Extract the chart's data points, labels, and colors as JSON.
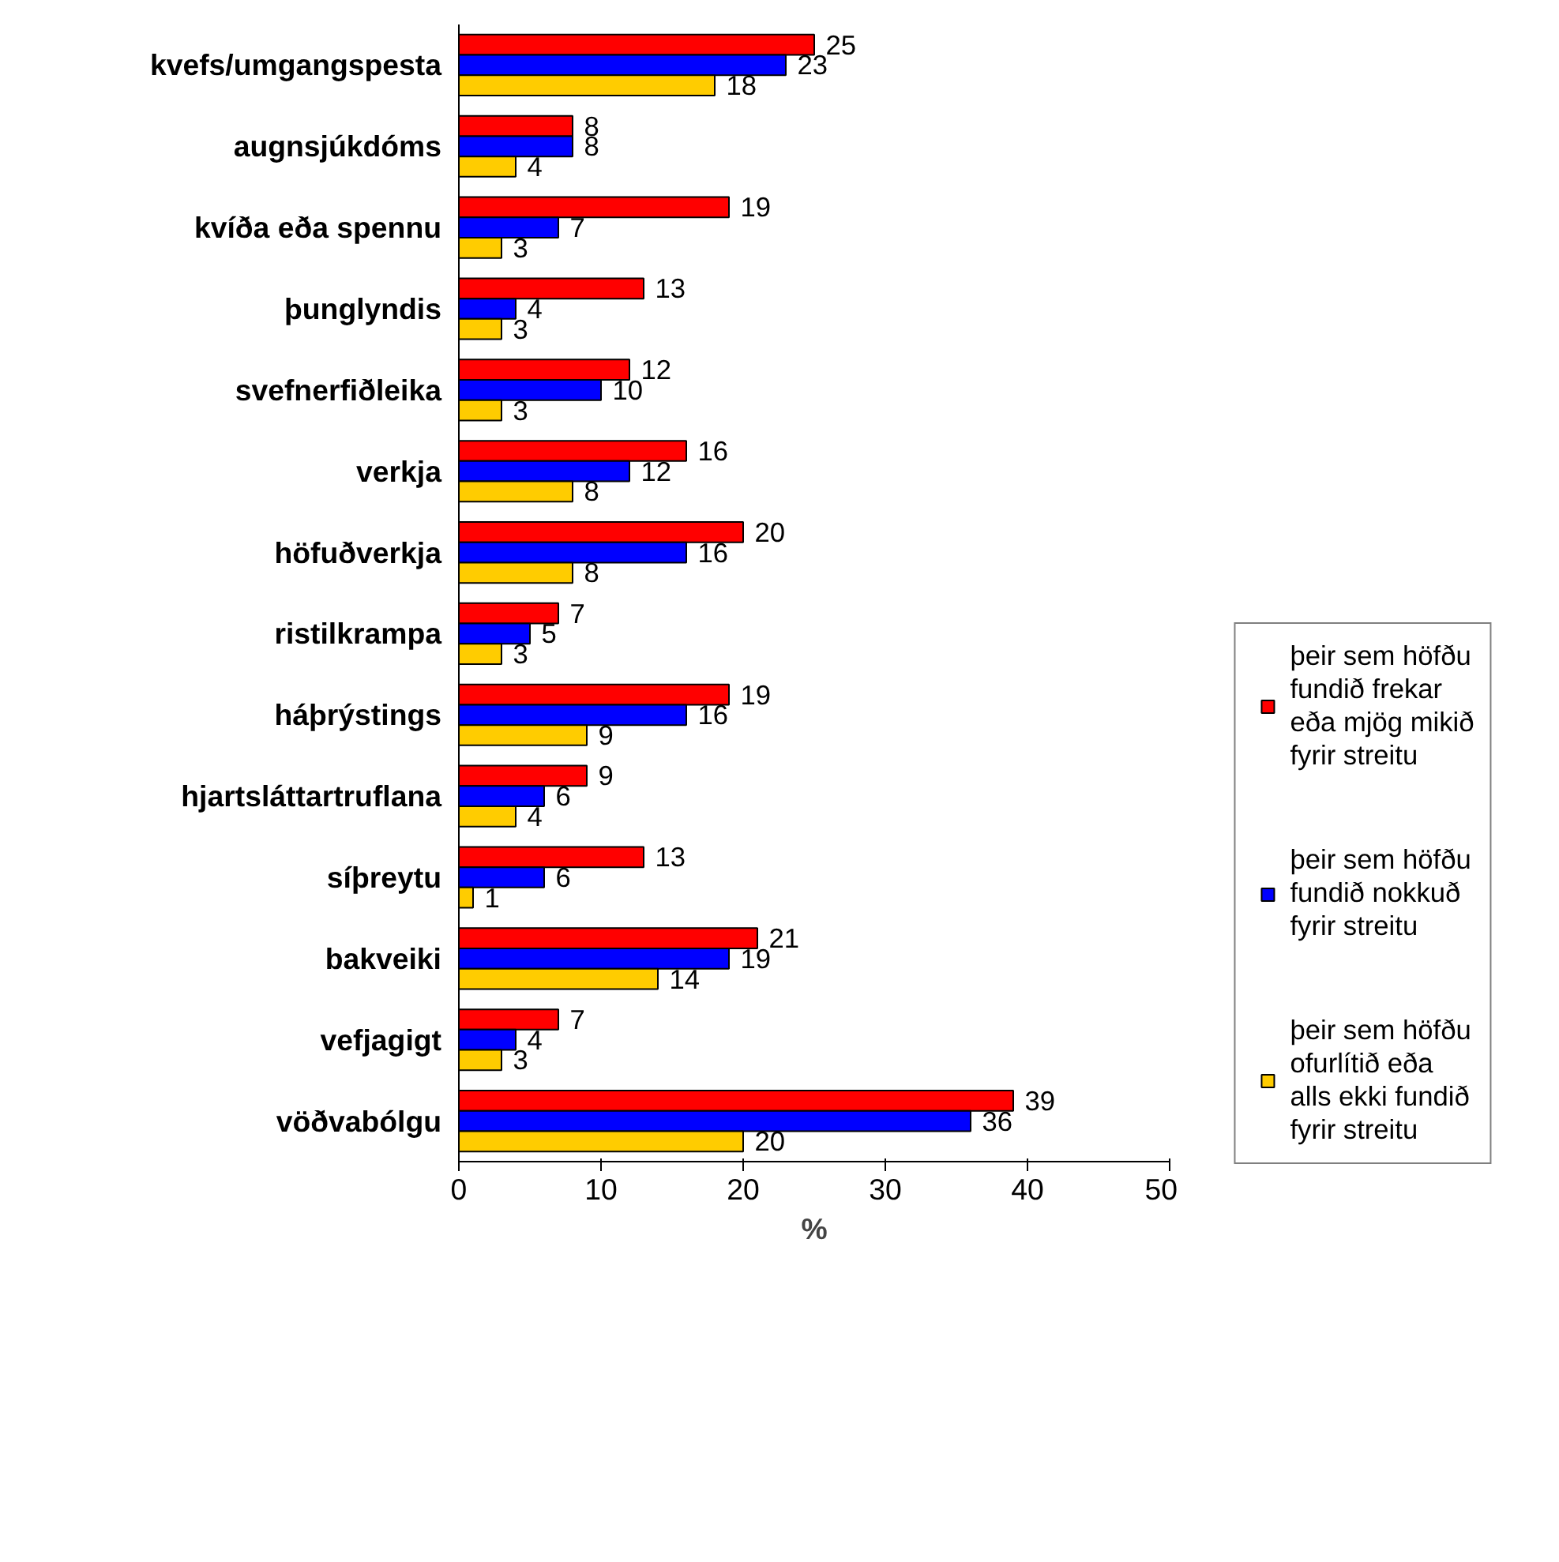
{
  "chart_data": {
    "type": "bar",
    "orientation": "horizontal",
    "xlabel": "%",
    "categories": [
      "kvefs/umgangspesta",
      "augnsjúkdóms",
      "kvíða eða spennu",
      "þunglyndis",
      "svefnerfiðleika",
      "verkja",
      "höfuðverkja",
      "ristilkrampa",
      "háþrýstings",
      "hjartsláttartruflana",
      "síþreytu",
      "bakveiki",
      "vefjagigt",
      "vöðvabólgu"
    ],
    "series": [
      {
        "name": "þeir sem höfðu fundið frekar eða mjög mikið fyrir streitu",
        "color": "#ff0000",
        "values": [
          25,
          8,
          19,
          13,
          12,
          16,
          20,
          7,
          19,
          9,
          13,
          21,
          7,
          39
        ]
      },
      {
        "name": "þeir sem höfðu fundið nokkuð fyrir streitu",
        "color": "#0000ff",
        "values": [
          23,
          8,
          7,
          4,
          10,
          12,
          16,
          5,
          16,
          6,
          6,
          19,
          4,
          36
        ]
      },
      {
        "name": "þeir sem höfðu ofurlítið eða alls ekki fundið fyrir streitu",
        "color": "#ffcc00",
        "values": [
          18,
          4,
          3,
          3,
          3,
          8,
          8,
          3,
          9,
          4,
          1,
          14,
          3,
          20
        ]
      }
    ],
    "xlim": [
      0,
      50
    ],
    "xticks": [
      0,
      10,
      20,
      30,
      40,
      50
    ],
    "data_labels": true,
    "legend": "right",
    "grid": false
  }
}
